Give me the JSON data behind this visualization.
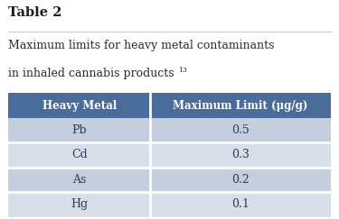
{
  "table_title": "Table 2",
  "table_subtitle_line1": "Maximum limits for heavy metal contaminants",
  "table_subtitle_line2": "in inhaled cannabis products",
  "superscript": "13",
  "col_headers": [
    "Heavy Metal",
    "Maximum Limit (μg/g)"
  ],
  "rows": [
    [
      "Pb",
      "0.5"
    ],
    [
      "Cd",
      "0.3"
    ],
    [
      "As",
      "0.2"
    ],
    [
      "Hg",
      "0.1"
    ]
  ],
  "header_bg": "#4a6c9b",
  "row_bg_odd": "#c5cedf",
  "row_bg_even": "#d8dfe9",
  "header_text_color": "#ffffff",
  "row_text_color": "#2a3a5c",
  "title_color": "#1a1a1a",
  "subtitle_color": "#2a2a2a",
  "background_color": "#ffffff",
  "divider_color": "#ffffff",
  "title_underline_color": "#cccccc"
}
